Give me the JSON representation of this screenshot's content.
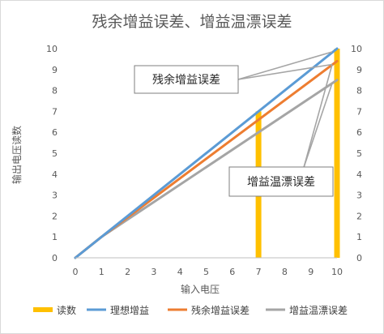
{
  "chart_data": {
    "type": "line",
    "title": "残余增益误差、增益温漂误差",
    "xlabel": "输入电压",
    "ylabel": "输出电压读数",
    "xlim": [
      0,
      10
    ],
    "ylim": [
      0,
      10
    ],
    "x_ticks": [
      "0",
      "1",
      "2",
      "3",
      "4",
      "5",
      "6",
      "7",
      "8",
      "9",
      "10"
    ],
    "y_ticks": [
      "0",
      "1",
      "2",
      "3",
      "4",
      "5",
      "6",
      "7",
      "8",
      "9",
      "10"
    ],
    "grid": false,
    "legend_position": "bottom",
    "series": [
      {
        "name": "读数",
        "type": "bar",
        "color": "#FFC000",
        "points": [
          [
            7,
            7
          ],
          [
            10,
            10
          ]
        ]
      },
      {
        "name": "理想增益",
        "type": "line",
        "color": "#5B9BD5",
        "points": [
          [
            0,
            0
          ],
          [
            10,
            10
          ]
        ]
      },
      {
        "name": "残余增益误差",
        "type": "line",
        "color": "#ED7D31",
        "points": [
          [
            0,
            0
          ],
          [
            1,
            1
          ],
          [
            10,
            9.4
          ]
        ]
      },
      {
        "name": "增益温漂误差",
        "type": "line",
        "color": "#A5A5A5",
        "points": [
          [
            0,
            0
          ],
          [
            1,
            1
          ],
          [
            10,
            8.5
          ]
        ]
      }
    ],
    "annotations": [
      {
        "text": "残余增益误差",
        "color": "#A5A5A5"
      },
      {
        "text": "增益温漂误差",
        "color": "#A5A5A5"
      }
    ]
  }
}
